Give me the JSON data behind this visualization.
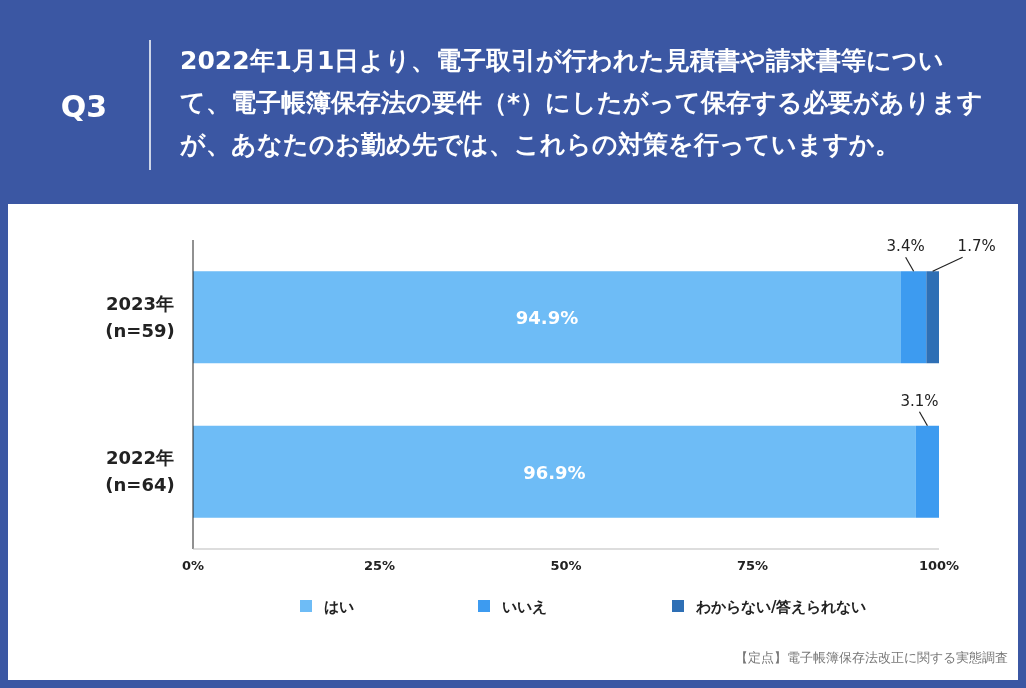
{
  "chart_data": {
    "type": "bar",
    "orientation": "horizontal",
    "stacked": true,
    "title": "Q3",
    "subtitle": "2022年1月1日より、電子取引が行われた見積書や請求書等について、電子帳簿保存法の要件（*）にしたがって保存する必要がありますが、あなたのお勤め先では、これらの対策を行っていますか。",
    "categories": [
      "2023年\n(n=59)",
      "2022年\n(n=64)"
    ],
    "series": [
      {
        "name": "はい",
        "color": "#6ebcf6",
        "values": [
          94.9,
          96.9
        ],
        "value_labels": [
          "94.9%",
          "96.9%"
        ]
      },
      {
        "name": "いいえ",
        "color": "#3d9bf0",
        "values": [
          3.4,
          3.1
        ],
        "value_labels": [
          "3.4%",
          "3.1%"
        ]
      },
      {
        "name": "わからない/答えられない",
        "color": "#2e6fb5",
        "values": [
          1.7,
          0
        ],
        "value_labels": [
          "1.7%",
          null
        ]
      }
    ],
    "xlim": [
      0,
      100
    ],
    "xticks": [
      {
        "value": 0,
        "label": "0%"
      },
      {
        "value": 25,
        "label": "25%"
      },
      {
        "value": 50,
        "label": "50%"
      },
      {
        "value": 75,
        "label": "75%"
      },
      {
        "value": 100,
        "label": "100%"
      }
    ],
    "grid": false,
    "legend": "bottom",
    "annotations": [
      "【定点】電子帳簿保存法改正に関する実態調査"
    ]
  }
}
